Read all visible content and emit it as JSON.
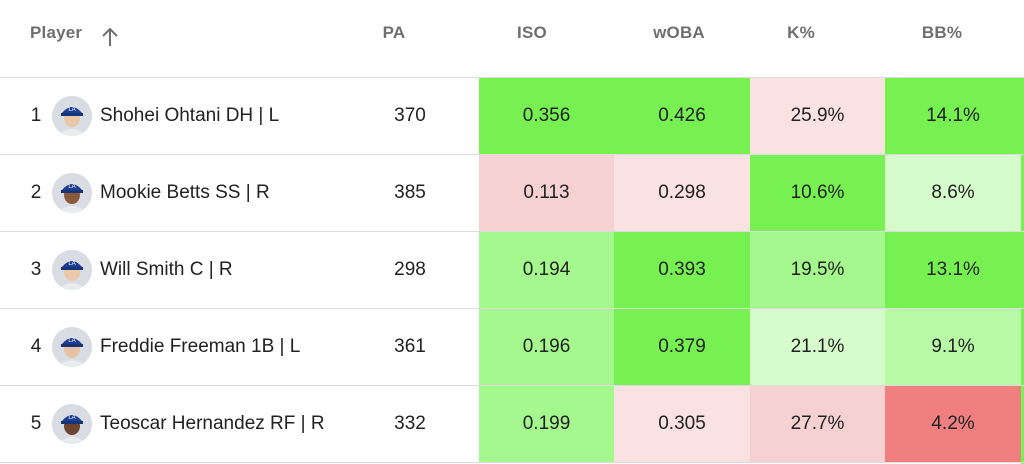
{
  "header": {
    "player": "Player",
    "pa": "PA",
    "iso": "ISO",
    "woba": "wOBA",
    "k": "K%",
    "bb": "BB%"
  },
  "colors": {
    "bright_green": "#77f152",
    "mid_green": "#a4f88d",
    "light_green": "#d6fccb",
    "light_pink": "#fae1e2",
    "pink": "#f6d1d2",
    "red": "#f08080"
  },
  "rows": [
    {
      "rank": "1",
      "player": "Shohei Ohtani DH | L",
      "pa": "370",
      "iso": "0.356",
      "woba": "0.426",
      "k": "25.9%",
      "bb": "14.1%",
      "iso_color": "#77f152",
      "woba_color": "#77f152",
      "k_color": "#fae1e2",
      "bb_color": "#77f152"
    },
    {
      "rank": "2",
      "player": "Mookie Betts SS | R",
      "pa": "385",
      "iso": "0.113",
      "woba": "0.298",
      "k": "10.6%",
      "bb": "8.6%",
      "iso_color": "#f6d1d2",
      "woba_color": "#fae1e2",
      "k_color": "#77f152",
      "bb_color": "#d6fccb"
    },
    {
      "rank": "3",
      "player": "Will Smith C | R",
      "pa": "298",
      "iso": "0.194",
      "woba": "0.393",
      "k": "19.5%",
      "bb": "13.1%",
      "iso_color": "#a4f88d",
      "woba_color": "#77f152",
      "k_color": "#a4f88d",
      "bb_color": "#77f152"
    },
    {
      "rank": "4",
      "player": "Freddie Freeman 1B | L",
      "pa": "361",
      "iso": "0.196",
      "woba": "0.379",
      "k": "21.1%",
      "bb": "9.1%",
      "iso_color": "#a4f88d",
      "woba_color": "#77f152",
      "k_color": "#d6fccb",
      "bb_color": "#b8f9a5"
    },
    {
      "rank": "5",
      "player": "Teoscar Hernandez RF | R",
      "pa": "332",
      "iso": "0.199",
      "woba": "0.305",
      "k": "27.7%",
      "bb": "4.2%",
      "iso_color": "#a4f88d",
      "woba_color": "#fae1e2",
      "k_color": "#f6d1d2",
      "bb_color": "#f08080"
    }
  ]
}
